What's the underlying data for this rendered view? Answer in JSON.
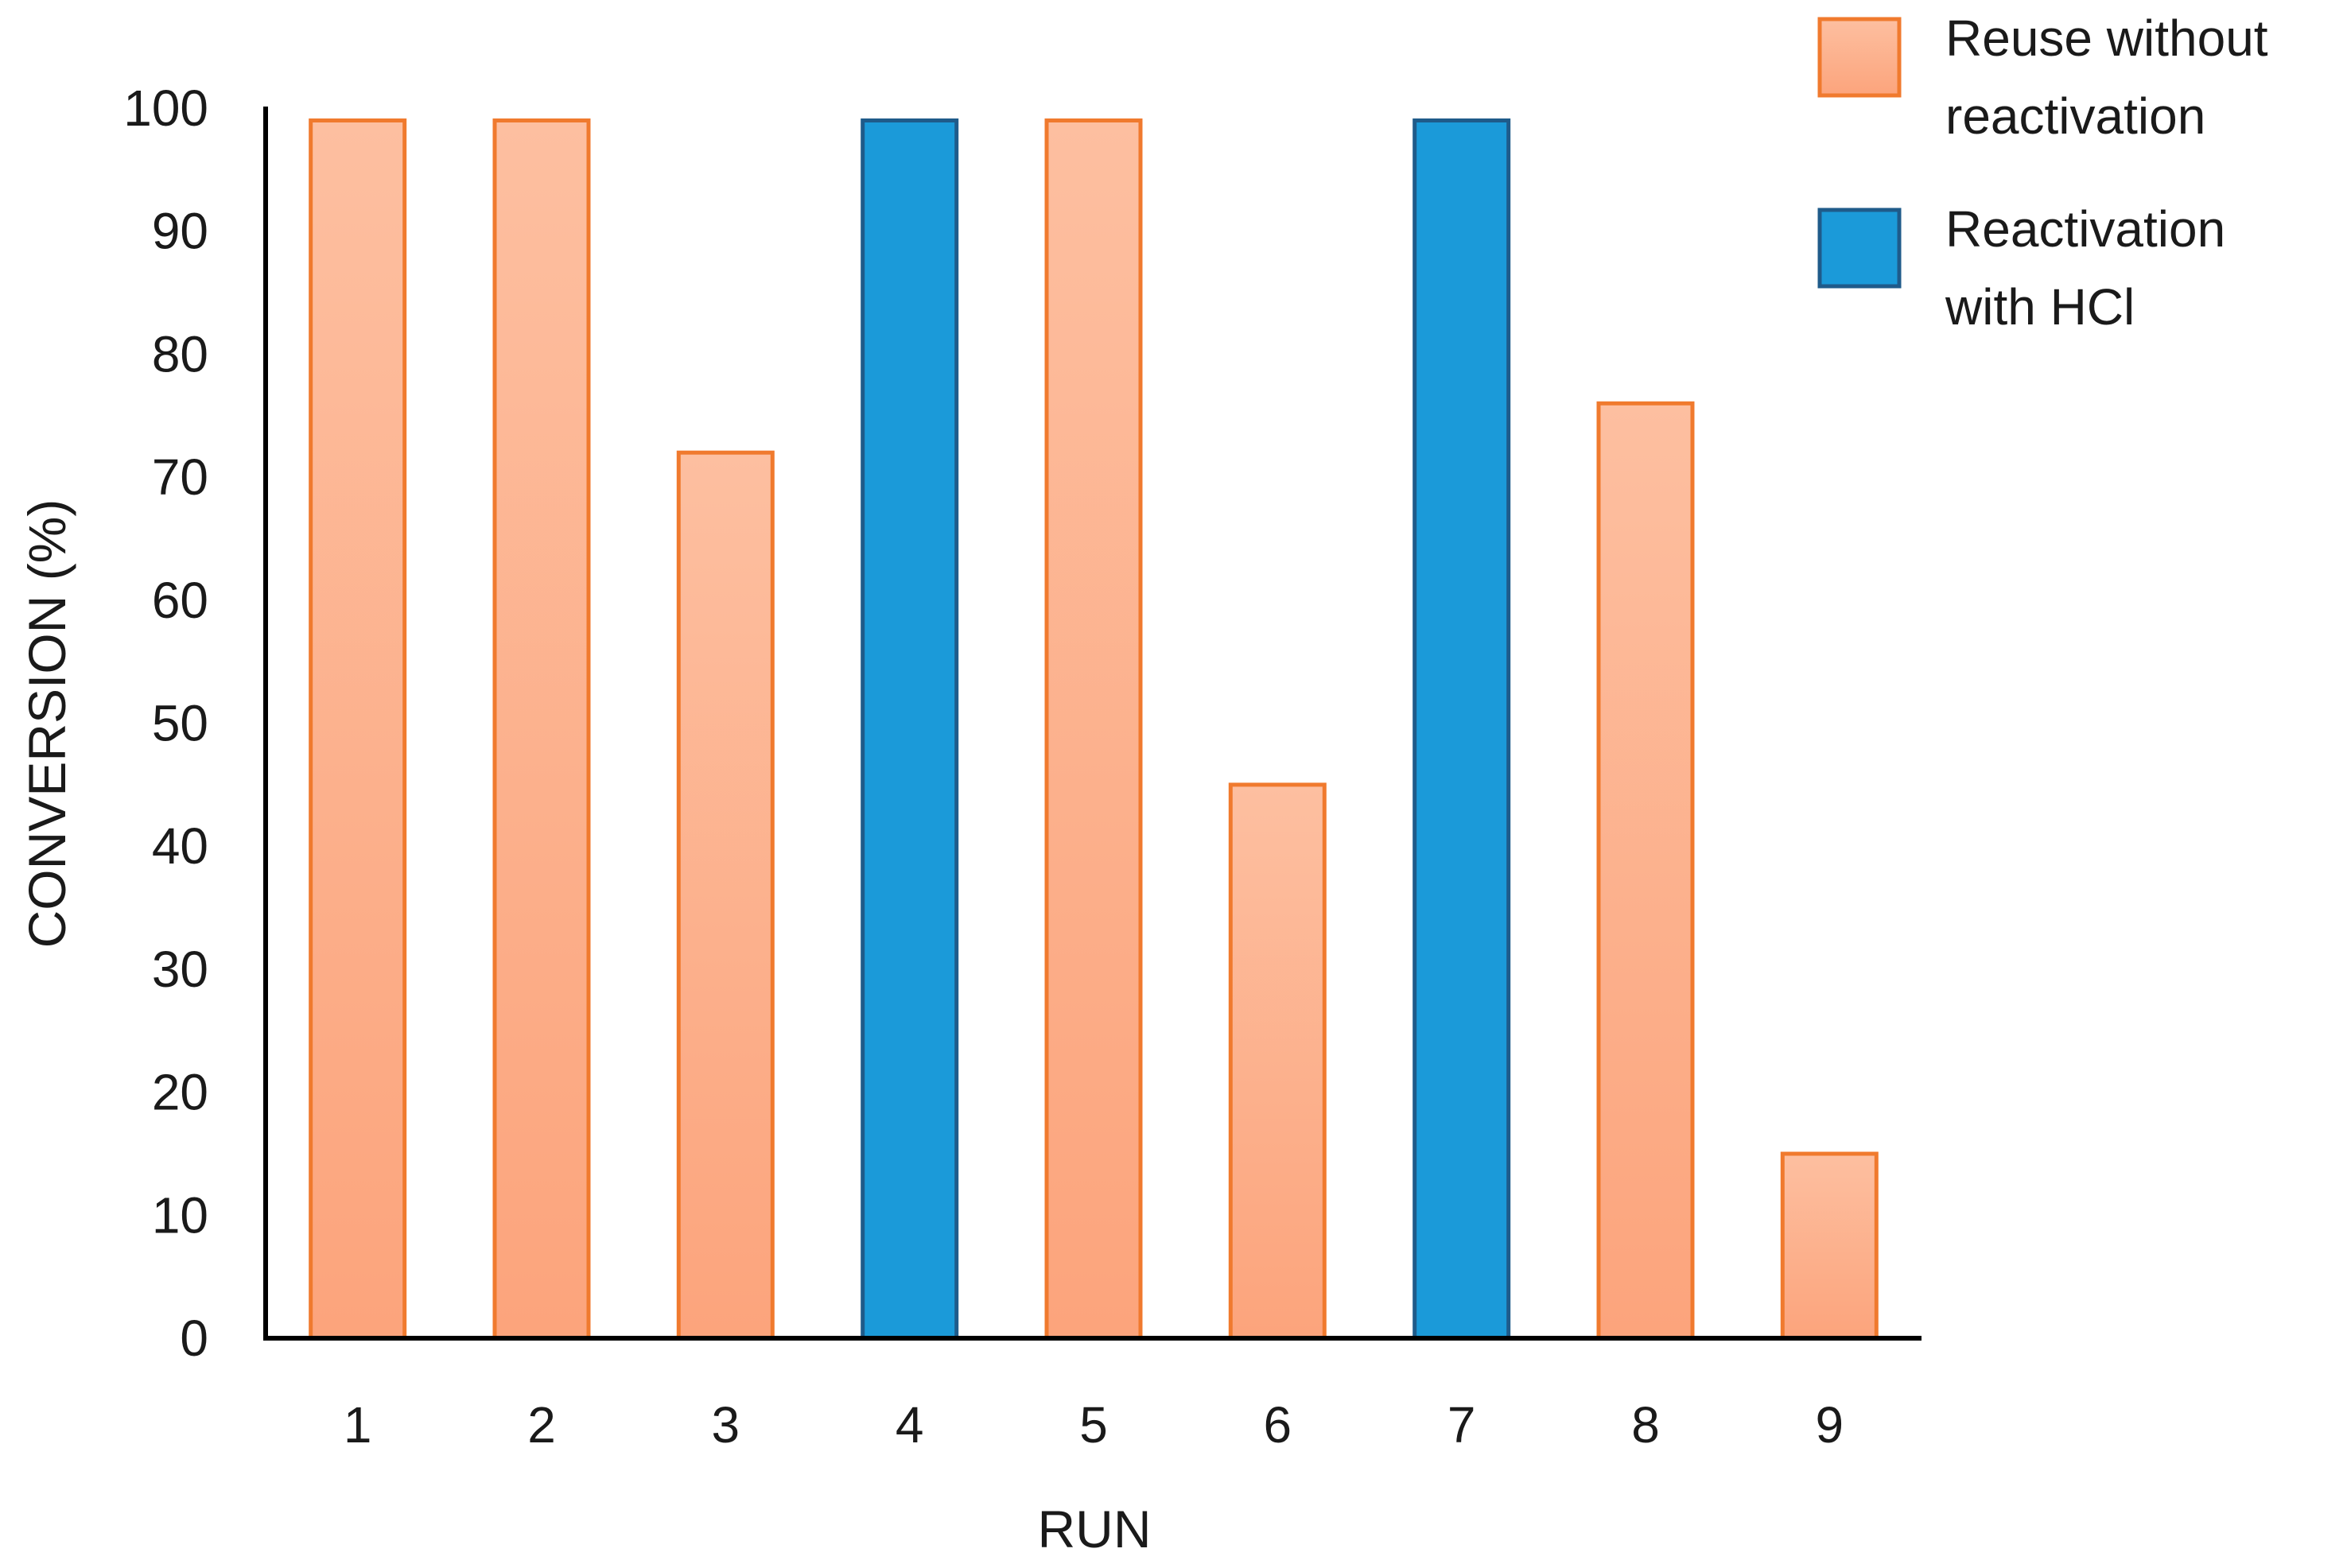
{
  "chart_data": {
    "type": "bar",
    "title": "",
    "xlabel": "RUN",
    "ylabel": "CONVERSION (%)",
    "categories": [
      "1",
      "2",
      "3",
      "4",
      "5",
      "6",
      "7",
      "8",
      "9"
    ],
    "values": [
      99,
      99,
      72,
      99,
      99,
      45,
      99,
      76,
      15
    ],
    "bar_group": [
      0,
      0,
      0,
      1,
      0,
      0,
      1,
      0,
      0
    ],
    "ylim": [
      0,
      100
    ],
    "yticks": [
      "0",
      "10",
      "20",
      "30",
      "40",
      "50",
      "60",
      "70",
      "80",
      "90",
      "100"
    ],
    "grid": false,
    "legend_position": "top-right",
    "legend": [
      {
        "lines": [
          "Reuse without",
          "reactivation"
        ],
        "fill_top": "#fdbfa0",
        "fill_bottom": "#fca47c",
        "stroke": "#f07a2e"
      },
      {
        "lines": [
          "Reactivation",
          "with HCl"
        ],
        "fill_top": "#1b9ad9",
        "fill_bottom": "#1b9ad9",
        "stroke": "#1f5b8a"
      }
    ],
    "axis_color": "#000000"
  }
}
